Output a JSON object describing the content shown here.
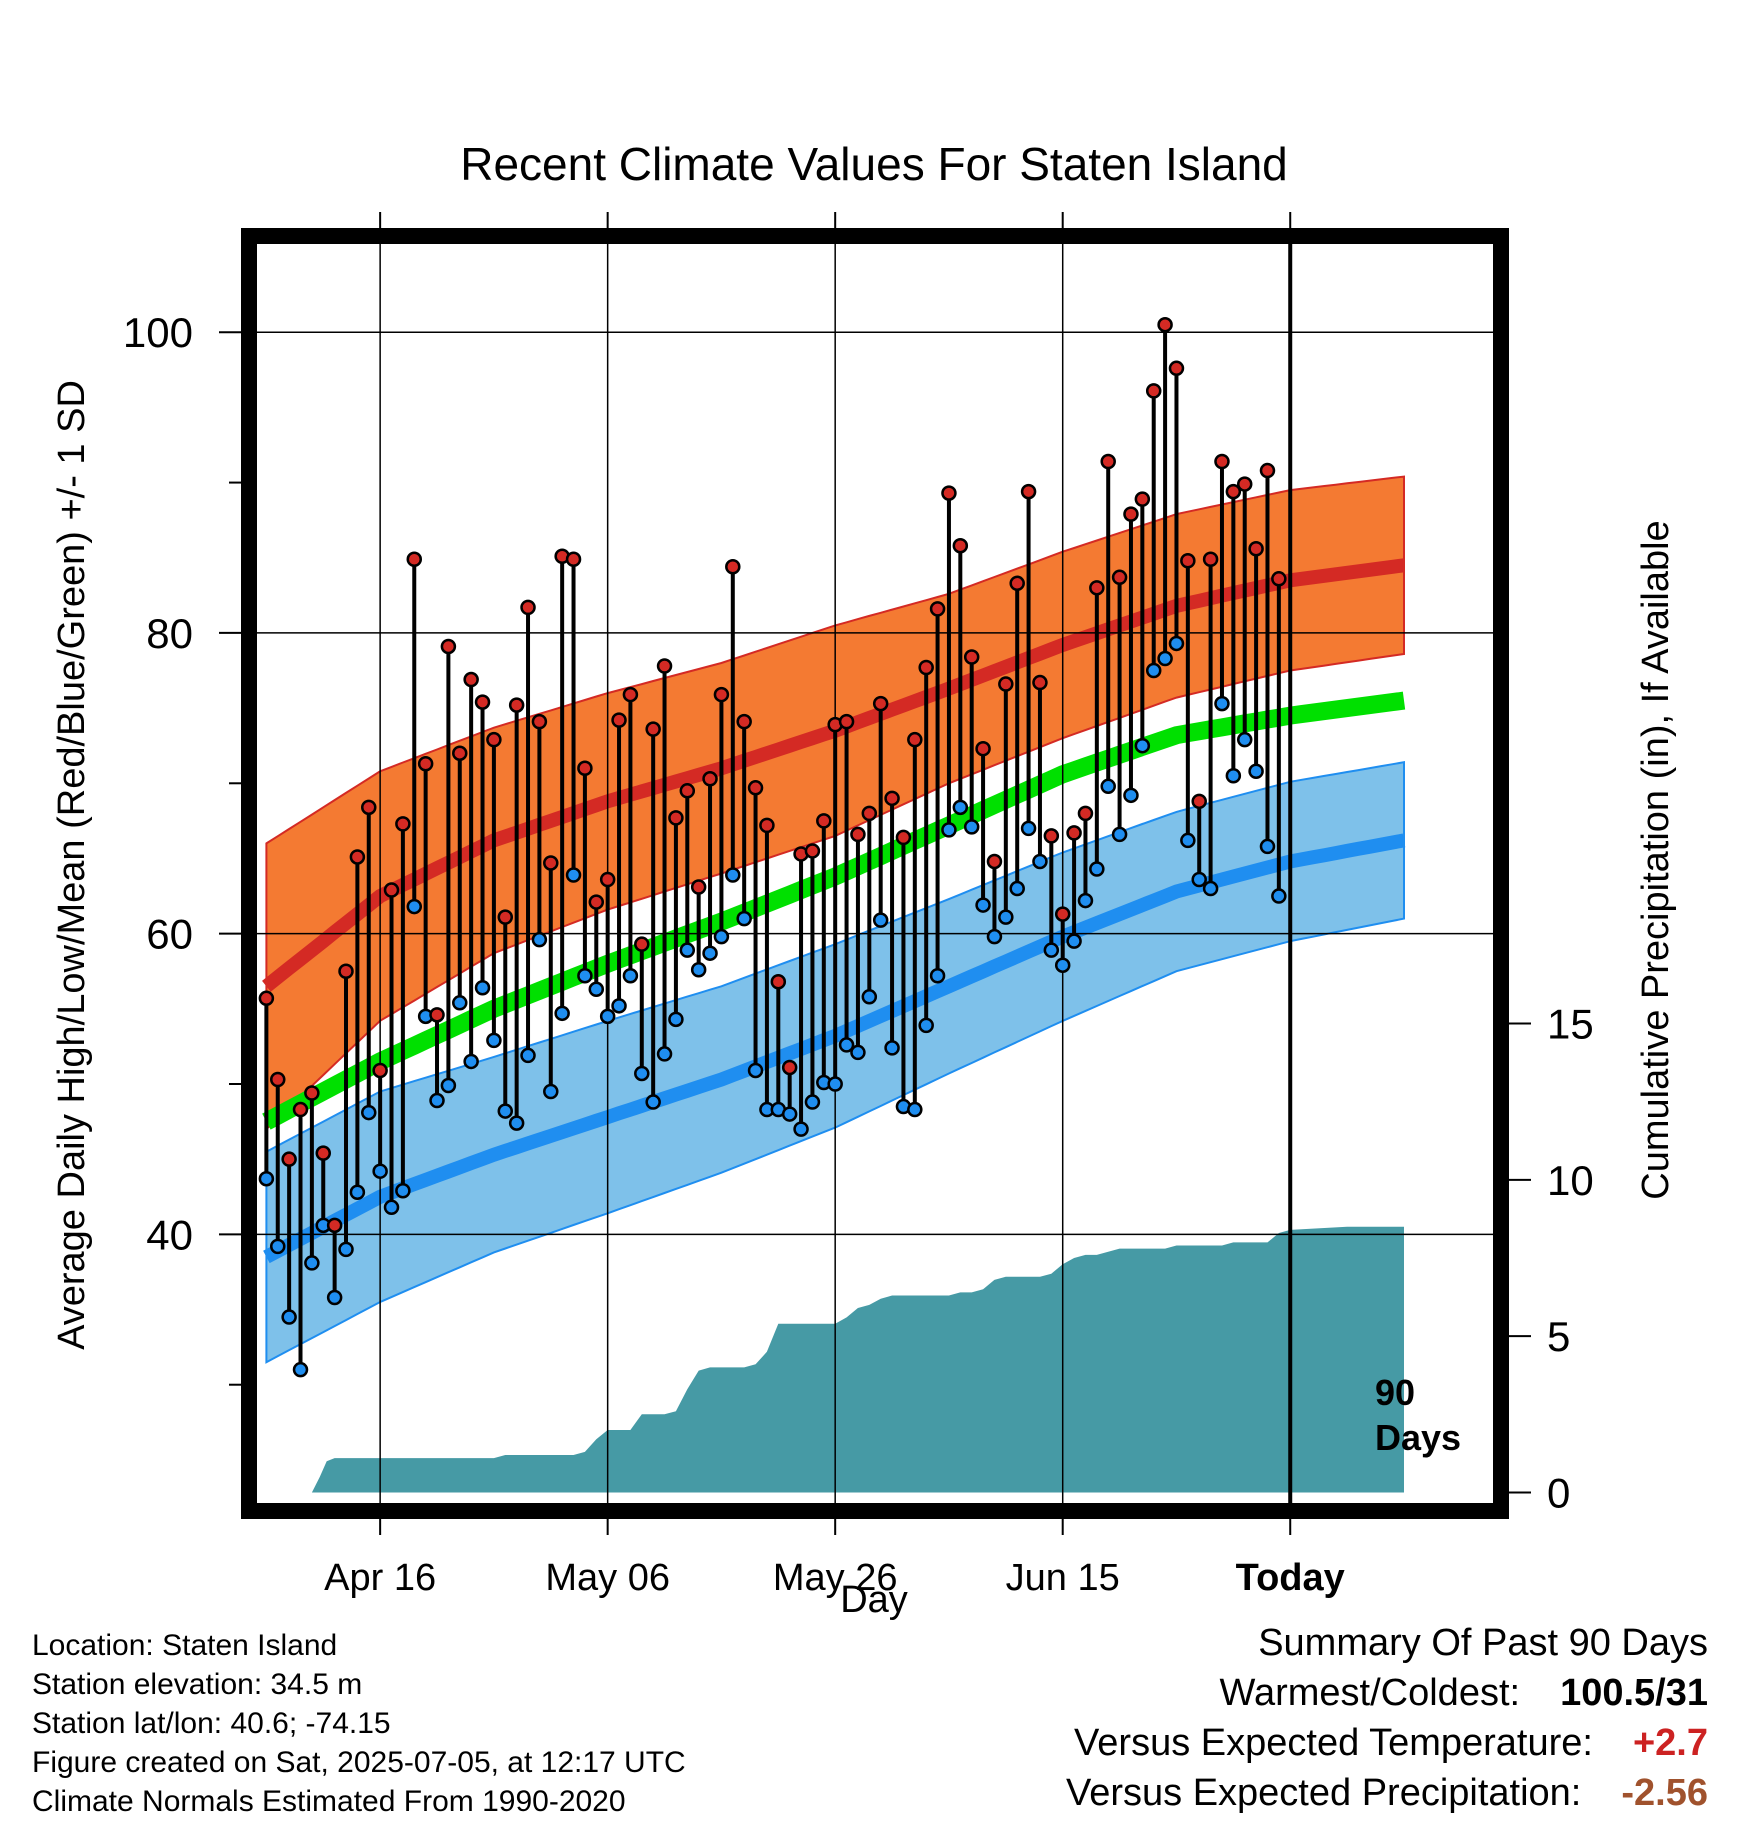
{
  "chart_data": {
    "type": "line",
    "title": "Recent Climate Values For Staten Island",
    "xlabel": "Day",
    "ylabel_left": "Average Daily High/Low/Mean (Red/Blue/Green) +/- 1 SD",
    "ylabel_right": "Cumulative Precipitation (in), If Available",
    "x_tick_labels": [
      "Apr 16",
      "May 06",
      "May 26",
      "Jun 15",
      "Today"
    ],
    "x_tick_days": [
      10,
      30,
      50,
      70,
      90
    ],
    "x_range": [
      -1,
      108
    ],
    "temperature_ylim": [
      22,
      106
    ],
    "temperature_ticks": [
      40,
      60,
      80,
      100
    ],
    "precip_ylim": [
      -0.4,
      40
    ],
    "precip_ticks": [
      0,
      5,
      10,
      15
    ],
    "today_marker_label_1": "90",
    "today_marker_label_2": "Days",
    "colors": {
      "high": "#d42a24",
      "high_band": "#f47a32",
      "low": "#1f8ef0",
      "low_band": "#7ec1ea",
      "mean": "#00e000",
      "precip": "#469aa5",
      "stem": "#000000"
    },
    "normals": {
      "days": [
        0,
        10,
        20,
        30,
        40,
        50,
        60,
        70,
        80,
        90,
        100
      ],
      "high_mean": [
        56.5,
        62.5,
        66.2,
        68.8,
        71.0,
        73.5,
        76.3,
        79.2,
        81.8,
        83.5,
        84.5
      ],
      "high_sd": [
        9.5,
        8.3,
        7.5,
        7.2,
        7.0,
        7.0,
        6.3,
        6.2,
        6.1,
        6.0,
        5.9
      ],
      "mean_mean": [
        47.5,
        51.5,
        55.0,
        58.0,
        60.8,
        63.8,
        67.2,
        70.6,
        73.2,
        74.5,
        75.5
      ],
      "low_mean": [
        38.5,
        42.5,
        45.3,
        47.8,
        50.3,
        53.2,
        56.5,
        59.8,
        62.8,
        64.8,
        66.2
      ],
      "low_sd": [
        7.0,
        7.0,
        6.5,
        6.4,
        6.2,
        6.1,
        5.8,
        5.6,
        5.3,
        5.3,
        5.2
      ]
    },
    "observations": {
      "days": [
        0,
        1,
        2,
        3,
        4,
        5,
        6,
        7,
        8,
        9,
        10,
        11,
        12,
        13,
        14,
        15,
        16,
        17,
        18,
        19,
        20,
        21,
        22,
        23,
        24,
        25,
        26,
        27,
        28,
        29,
        30,
        31,
        32,
        33,
        34,
        35,
        36,
        37,
        38,
        39,
        40,
        41,
        42,
        43,
        44,
        45,
        46,
        47,
        48,
        49,
        50,
        51,
        52,
        53,
        54,
        55,
        56,
        57,
        58,
        59,
        60,
        61,
        62,
        63,
        64,
        65,
        66,
        67,
        68,
        69,
        70,
        71,
        72,
        73,
        74,
        75,
        76,
        77,
        78,
        79,
        80,
        81,
        82,
        83,
        84,
        85,
        86,
        87,
        88,
        89
      ],
      "high": [
        55.7,
        50.3,
        45.0,
        48.3,
        49.4,
        45.4,
        40.6,
        57.5,
        65.1,
        68.4,
        50.9,
        62.9,
        67.3,
        84.9,
        71.3,
        54.6,
        79.1,
        72.0,
        76.9,
        75.4,
        72.9,
        61.1,
        75.2,
        81.7,
        74.1,
        64.7,
        85.1,
        84.9,
        71.0,
        62.1,
        63.6,
        74.2,
        75.9,
        59.3,
        73.6,
        77.8,
        67.7,
        69.5,
        63.1,
        70.3,
        75.9,
        84.4,
        74.1,
        69.7,
        67.2,
        56.8,
        51.1,
        65.3,
        65.5,
        67.5,
        73.9,
        74.1,
        66.6,
        68.0,
        75.3,
        69.0,
        66.4,
        72.9,
        77.7,
        81.6,
        89.3,
        85.8,
        78.4,
        72.3,
        64.8,
        76.6,
        83.3,
        89.4,
        76.7,
        66.5,
        61.3,
        66.7,
        68.0,
        83.0,
        91.4,
        83.7,
        87.9,
        88.9,
        96.1,
        100.5,
        97.6,
        84.8,
        68.8,
        84.9,
        91.4,
        89.4,
        89.9,
        85.6,
        90.8,
        83.6
      ],
      "low": [
        43.7,
        39.2,
        34.5,
        31.0,
        38.1,
        40.6,
        35.8,
        39.0,
        42.8,
        48.1,
        44.2,
        41.8,
        42.9,
        61.8,
        54.5,
        48.9,
        49.9,
        55.4,
        51.5,
        56.4,
        52.9,
        48.2,
        47.4,
        51.9,
        59.6,
        49.5,
        54.7,
        63.9,
        57.2,
        56.3,
        54.5,
        55.2,
        57.2,
        50.7,
        48.8,
        52.0,
        54.3,
        58.9,
        57.6,
        58.7,
        59.8,
        63.9,
        61.0,
        50.9,
        48.3,
        48.3,
        48.0,
        47.0,
        48.8,
        50.1,
        50.0,
        52.6,
        52.1,
        55.8,
        60.9,
        52.4,
        48.5,
        48.3,
        53.9,
        57.2,
        66.9,
        68.4,
        67.1,
        61.9,
        59.8,
        61.1,
        63.0,
        67.0,
        64.8,
        58.9,
        57.9,
        59.5,
        62.2,
        64.3,
        69.8,
        66.6,
        69.2,
        72.5,
        77.5,
        78.3,
        79.3,
        66.2,
        63.6,
        63.0,
        75.3,
        70.5,
        72.9,
        70.8,
        65.8,
        62.5
      ]
    },
    "precip": {
      "days": [
        0,
        1,
        2,
        3,
        4,
        4.7,
        5.3,
        6,
        8,
        10,
        12,
        14,
        16,
        18,
        19,
        20,
        21,
        22,
        23,
        24,
        25,
        26,
        27,
        28,
        29,
        30,
        31,
        32,
        33,
        34,
        35,
        36,
        37,
        38,
        39,
        40,
        41,
        42,
        43,
        44,
        45,
        46,
        47,
        48,
        49,
        50,
        51,
        52,
        53,
        54,
        55,
        56,
        57,
        58,
        59,
        60,
        61,
        62,
        63,
        64,
        65,
        66,
        67,
        68,
        69,
        70,
        71,
        72,
        73,
        74,
        75,
        76,
        77,
        78,
        79,
        80,
        81,
        82,
        83,
        84,
        85,
        86,
        87,
        88,
        89,
        90,
        95,
        100
      ],
      "values": [
        0,
        0,
        0,
        0,
        0,
        0.5,
        1.0,
        1.1,
        1.1,
        1.1,
        1.1,
        1.1,
        1.1,
        1.1,
        1.1,
        1.1,
        1.2,
        1.2,
        1.2,
        1.2,
        1.2,
        1.2,
        1.2,
        1.3,
        1.7,
        2.0,
        2.0,
        2.0,
        2.5,
        2.5,
        2.5,
        2.6,
        3.3,
        3.9,
        4.0,
        4.0,
        4.0,
        4.0,
        4.1,
        4.5,
        5.4,
        5.4,
        5.4,
        5.4,
        5.4,
        5.4,
        5.6,
        5.9,
        6.0,
        6.2,
        6.3,
        6.3,
        6.3,
        6.3,
        6.3,
        6.3,
        6.4,
        6.4,
        6.5,
        6.8,
        6.9,
        6.9,
        6.9,
        6.9,
        7.0,
        7.3,
        7.5,
        7.6,
        7.6,
        7.7,
        7.8,
        7.8,
        7.8,
        7.8,
        7.8,
        7.9,
        7.9,
        7.9,
        7.9,
        7.9,
        8.0,
        8.0,
        8.0,
        8.0,
        8.3,
        8.4,
        8.5,
        8.5
      ]
    }
  },
  "footer": {
    "location": "Location: Staten Island",
    "elevation": "Station elevation: 34.5 m",
    "latlon": "Station lat/lon: 40.6; -74.15",
    "created": "Figure created on Sat, 2025-07-05, at 12:17 UTC",
    "normals": "Climate Normals Estimated From 1990-2020"
  },
  "summary": {
    "heading": "Summary Of Past 90 Days",
    "warmest_coldest_label": "Warmest/Coldest:",
    "warmest_coldest_value": "100.5/31",
    "temp_label": "Versus Expected Temperature:",
    "temp_value": "+2.7",
    "temp_color": "#cc2222",
    "precip_label": "Versus Expected Precipitation:",
    "precip_value": "-2.56",
    "precip_color": "#a0522d"
  }
}
